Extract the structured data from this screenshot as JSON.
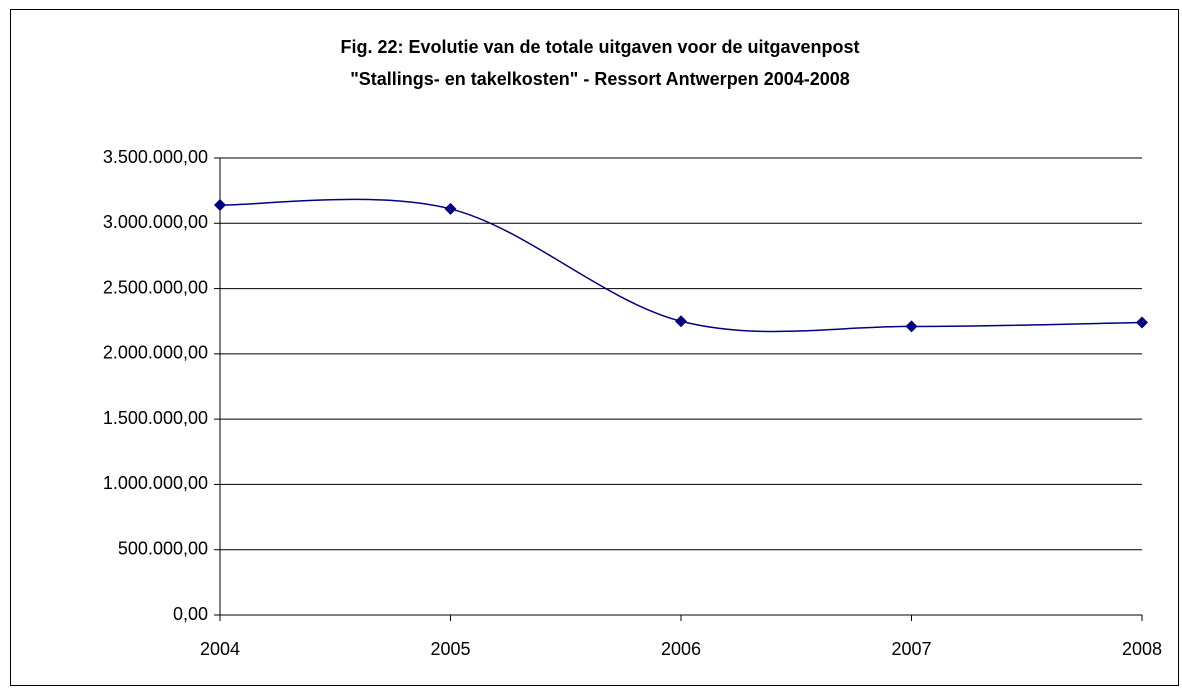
{
  "chart_data": {
    "type": "line",
    "title": [
      "Fig. 22: Evolutie van de totale uitgaven voor de uitgavenpost",
      "\"Stallings- en takelkosten\" - Ressort Antwerpen 2004-2008"
    ],
    "categories": [
      "2004",
      "2005",
      "2006",
      "2007",
      "2008"
    ],
    "series": [
      {
        "name": "Stallings- en takelkosten",
        "color": "#000080",
        "values": [
          3140000,
          3110000,
          2250000,
          2210000,
          2240000
        ]
      }
    ],
    "ylim": [
      0,
      3500000
    ],
    "yticks": [
      {
        "value": 0,
        "label": "0,00"
      },
      {
        "value": 500000,
        "label": "500.000,00"
      },
      {
        "value": 1000000,
        "label": "1.000.000,00"
      },
      {
        "value": 1500000,
        "label": "1.500.000,00"
      },
      {
        "value": 2000000,
        "label": "2.000.000,00"
      },
      {
        "value": 2500000,
        "label": "2.500.000,00"
      },
      {
        "value": 3000000,
        "label": "3.000.000,00"
      },
      {
        "value": 3500000,
        "label": "3.500.000,00"
      }
    ],
    "grid": true,
    "smooth": true
  }
}
